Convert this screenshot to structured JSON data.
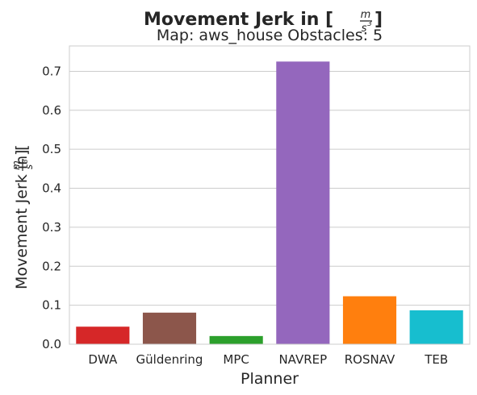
{
  "chart_data": {
    "type": "bar",
    "title": "Movement Jerk in [",
    "title_unit": {
      "numerator": "m",
      "denominator": "s",
      "exponent": "3"
    },
    "title_close": "]",
    "subtitle": "Map: aws_house Obstacles: 5",
    "xlabel": "Planner",
    "ylabel": "Movement Jerk in [",
    "ylabel_unit": {
      "numerator": "m",
      "denominator": "s",
      "exponent": "3"
    },
    "ylabel_close": "]",
    "categories": [
      "DWA",
      "Güldenring",
      "MPC",
      "NAVREP",
      "ROSNAV",
      "TEB"
    ],
    "values": [
      0.045,
      0.081,
      0.021,
      0.725,
      0.123,
      0.087
    ],
    "colors": [
      "#d62728",
      "#8c564b",
      "#2ca02c",
      "#9467bd",
      "#ff7f0e",
      "#17becf"
    ],
    "ylim": [
      0,
      0.765
    ],
    "yticks": [
      "0.0",
      "0.1",
      "0.2",
      "0.3",
      "0.4",
      "0.5",
      "0.6",
      "0.7"
    ],
    "grid": true,
    "legend": "none"
  }
}
